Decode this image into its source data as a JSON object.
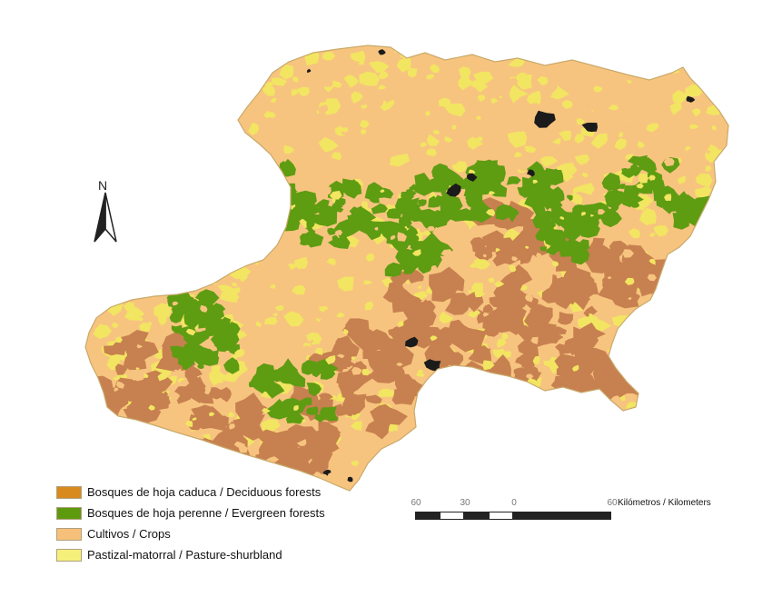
{
  "map": {
    "colors": {
      "deciduous": "#c7804f",
      "evergreen": "#5e9c12",
      "crops": "#f7c47f",
      "pasture": "#f2e562",
      "water": "#1b1b1b",
      "edge": "#c9a96a"
    }
  },
  "north_arrow": {
    "letter": "N",
    "icon": "north-arrow-icon"
  },
  "legend": {
    "items": [
      {
        "label": "Bosques de hoja caduca / Deciduous forests",
        "color": "#d88a1e"
      },
      {
        "label": "Bosques de hoja perenne / Evergreen forests",
        "color": "#5d9a0e"
      },
      {
        "label": "Cultivos / Crops",
        "color": "#f7c07a"
      },
      {
        "label": "Pastizal-matorral / Pasture-shurbland",
        "color": "#f5f07a"
      }
    ]
  },
  "scale": {
    "ticks": [
      "60",
      "30",
      "0",
      "60"
    ],
    "unit": "Kilómetros / Kilometers"
  }
}
